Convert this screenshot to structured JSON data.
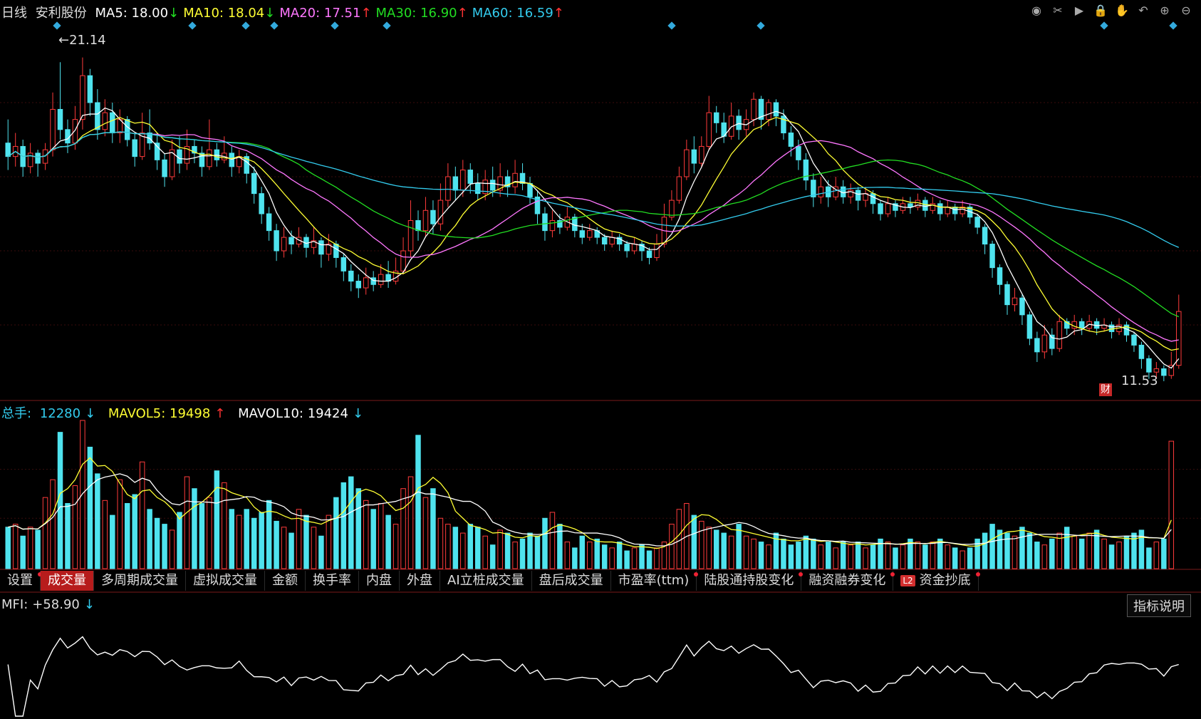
{
  "header": {
    "period": "日线",
    "stock": "安利股份",
    "ma": [
      {
        "label": "MA5: 18.00",
        "arrow": "↓",
        "color": "#ffffff",
        "arrow_color": "#22dd22"
      },
      {
        "label": "MA10: 18.04",
        "arrow": "↓",
        "color": "#ffff33",
        "arrow_color": "#22dd22"
      },
      {
        "label": "MA20: 17.51",
        "arrow": "↑",
        "color": "#ff77ff",
        "arrow_color": "#ff3333"
      },
      {
        "label": "MA30: 16.90",
        "arrow": "↑",
        "color": "#22dd22",
        "arrow_color": "#ff3333"
      },
      {
        "label": "MA60: 16.59",
        "arrow": "↑",
        "color": "#33ccee",
        "arrow_color": "#ff3333"
      }
    ]
  },
  "toolbar_icons": [
    "eye-icon",
    "scissors-icon",
    "play-icon",
    "lock-icon",
    "hand-icon",
    "undo-icon",
    "zoom-in-icon",
    "zoom-out-icon"
  ],
  "price_panel": {
    "high_label": "21.14",
    "low_label": "11.53",
    "fin_badge": "财"
  },
  "volume_header": {
    "total": {
      "label": "总手:",
      "value": "12280",
      "arrow": "↓",
      "color": "#33ccee"
    },
    "mavol5": {
      "label": "MAVOL5: 19498",
      "arrow": "↑",
      "color": "#ffff33"
    },
    "mavol10": {
      "label": "MAVOL10: 19424",
      "arrow": "↓",
      "color": "#ffffff"
    }
  },
  "tabs": [
    {
      "label": "设置",
      "dot": true,
      "active": false
    },
    {
      "label": "成交量",
      "dot": false,
      "active": true
    },
    {
      "label": "多周期成交量",
      "dot": false,
      "active": false
    },
    {
      "label": "虚拟成交量",
      "dot": false,
      "active": false
    },
    {
      "label": "金额",
      "dot": false,
      "active": false
    },
    {
      "label": "换手率",
      "dot": false,
      "active": false
    },
    {
      "label": "内盘",
      "dot": false,
      "active": false
    },
    {
      "label": "外盘",
      "dot": false,
      "active": false
    },
    {
      "label": "AI立桩成交量",
      "dot": false,
      "active": false
    },
    {
      "label": "盘后成交量",
      "dot": false,
      "active": false
    },
    {
      "label": "市盈率(ttm)",
      "dot": true,
      "active": false
    },
    {
      "label": "陆股通持股变化",
      "dot": true,
      "active": false
    },
    {
      "label": "融资融券变化",
      "dot": true,
      "active": false
    },
    {
      "label": "资金抄底",
      "dot": true,
      "active": false,
      "badge": "L2"
    }
  ],
  "mfi": {
    "label": "MFI:",
    "value": "+58.90",
    "arrow": "↓"
  },
  "explain_button": "指标说明",
  "colors": {
    "up": "#ff3b3b",
    "down": "#4fe3ee",
    "ma5": "#ffffff",
    "ma10": "#ffff33",
    "ma20": "#ff77ff",
    "ma30": "#22dd22",
    "ma60": "#33ccee"
  },
  "chart_data": {
    "type": "candlestick",
    "price_range": [
      11.0,
      22.0
    ],
    "candles": [
      [
        18.6,
        18.2,
        19.3,
        17.8
      ],
      [
        18.2,
        18.5,
        18.9,
        17.9
      ],
      [
        18.5,
        17.9,
        18.7,
        17.6
      ],
      [
        17.9,
        18.3,
        18.6,
        17.7
      ],
      [
        18.3,
        18.0,
        18.4,
        17.6
      ],
      [
        18.0,
        18.4,
        18.6,
        17.8
      ],
      [
        18.4,
        19.6,
        20.1,
        18.2
      ],
      [
        19.6,
        19.0,
        21.0,
        18.7
      ],
      [
        19.0,
        18.6,
        19.3,
        18.3
      ],
      [
        18.6,
        19.3,
        19.7,
        18.4
      ],
      [
        19.3,
        20.6,
        21.14,
        19.0
      ],
      [
        20.6,
        19.8,
        20.8,
        19.4
      ],
      [
        19.8,
        19.0,
        20.2,
        18.7
      ],
      [
        19.0,
        19.5,
        19.9,
        18.8
      ],
      [
        19.5,
        18.9,
        19.8,
        18.6
      ],
      [
        18.9,
        19.3,
        19.6,
        18.6
      ],
      [
        19.3,
        18.7,
        19.4,
        18.5
      ],
      [
        18.7,
        18.2,
        18.9,
        17.9
      ],
      [
        18.2,
        18.9,
        19.5,
        18.1
      ],
      [
        18.9,
        18.6,
        19.6,
        18.4
      ],
      [
        18.6,
        18.1,
        18.9,
        17.8
      ],
      [
        18.1,
        17.6,
        18.3,
        17.3
      ],
      [
        17.6,
        18.4,
        18.7,
        17.5
      ],
      [
        18.4,
        18.0,
        18.8,
        17.7
      ],
      [
        18.0,
        18.5,
        19.0,
        17.8
      ],
      [
        18.5,
        18.3,
        18.7,
        18.0
      ],
      [
        18.3,
        17.9,
        18.5,
        17.6
      ],
      [
        17.9,
        18.4,
        19.3,
        17.8
      ],
      [
        18.4,
        18.1,
        18.6,
        17.9
      ],
      [
        18.1,
        18.3,
        18.8,
        18.0
      ],
      [
        18.3,
        17.9,
        18.5,
        17.6
      ],
      [
        17.9,
        18.2,
        18.4,
        17.7
      ],
      [
        18.2,
        17.7,
        18.3,
        17.4
      ],
      [
        17.7,
        17.1,
        17.9,
        16.8
      ],
      [
        17.1,
        16.5,
        17.3,
        16.2
      ],
      [
        16.5,
        16.0,
        16.7,
        15.7
      ],
      [
        16.0,
        15.4,
        16.2,
        15.1
      ],
      [
        15.4,
        15.8,
        16.1,
        15.2
      ],
      [
        15.8,
        15.6,
        16.0,
        15.3
      ],
      [
        15.6,
        15.8,
        16.1,
        15.5
      ],
      [
        15.8,
        15.5,
        15.9,
        15.2
      ],
      [
        15.5,
        15.7,
        16.1,
        15.3
      ],
      [
        15.7,
        15.3,
        15.8,
        14.9
      ],
      [
        15.3,
        15.6,
        15.9,
        15.1
      ],
      [
        15.6,
        15.2,
        15.7,
        14.9
      ],
      [
        15.2,
        14.8,
        15.3,
        14.5
      ],
      [
        14.8,
        14.5,
        15.0,
        14.2
      ],
      [
        14.5,
        14.3,
        14.7,
        14.0
      ],
      [
        14.3,
        14.6,
        14.9,
        14.1
      ],
      [
        14.6,
        14.4,
        14.8,
        14.2
      ],
      [
        14.4,
        14.7,
        15.0,
        14.3
      ],
      [
        14.7,
        14.5,
        15.1,
        14.3
      ],
      [
        14.5,
        14.8,
        15.2,
        14.4
      ],
      [
        14.8,
        15.4,
        15.8,
        14.7
      ],
      [
        15.4,
        16.3,
        16.9,
        15.2
      ],
      [
        16.3,
        16.0,
        16.6,
        15.7
      ],
      [
        16.0,
        16.6,
        17.0,
        15.8
      ],
      [
        16.6,
        16.2,
        16.9,
        15.9
      ],
      [
        16.2,
        16.9,
        17.4,
        16.0
      ],
      [
        16.9,
        17.6,
        18.0,
        16.7
      ],
      [
        17.6,
        17.2,
        17.9,
        16.9
      ],
      [
        17.2,
        17.8,
        18.1,
        17.0
      ],
      [
        17.8,
        17.4,
        18.0,
        17.1
      ],
      [
        17.4,
        17.1,
        17.7,
        16.9
      ],
      [
        17.1,
        17.5,
        17.8,
        16.9
      ],
      [
        17.5,
        17.2,
        17.9,
        17.0
      ],
      [
        17.2,
        17.6,
        18.0,
        17.0
      ],
      [
        17.6,
        17.3,
        17.8,
        17.0
      ],
      [
        17.3,
        17.7,
        18.1,
        17.1
      ],
      [
        17.7,
        17.4,
        18.0,
        17.2
      ],
      [
        17.4,
        17.0,
        17.6,
        16.8
      ],
      [
        17.0,
        16.5,
        17.2,
        16.2
      ],
      [
        16.5,
        16.0,
        16.7,
        15.7
      ],
      [
        16.0,
        16.3,
        16.6,
        15.8
      ],
      [
        16.3,
        16.1,
        16.5,
        15.9
      ],
      [
        16.1,
        16.4,
        16.7,
        16.0
      ],
      [
        16.4,
        16.0,
        16.5,
        15.8
      ],
      [
        16.0,
        15.8,
        16.2,
        15.6
      ],
      [
        15.8,
        16.0,
        16.2,
        15.7
      ],
      [
        16.0,
        15.8,
        16.1,
        15.6
      ],
      [
        15.8,
        15.6,
        15.9,
        15.4
      ],
      [
        15.6,
        15.8,
        16.0,
        15.5
      ],
      [
        15.8,
        15.6,
        15.9,
        15.4
      ],
      [
        15.6,
        15.4,
        15.7,
        15.2
      ],
      [
        15.4,
        15.6,
        15.8,
        15.3
      ],
      [
        15.6,
        15.4,
        15.7,
        15.1
      ],
      [
        15.4,
        15.2,
        15.5,
        15.0
      ],
      [
        15.2,
        15.6,
        15.9,
        15.1
      ],
      [
        15.6,
        16.4,
        16.8,
        15.5
      ],
      [
        16.4,
        16.9,
        17.2,
        16.3
      ],
      [
        16.9,
        17.6,
        17.9,
        16.8
      ],
      [
        17.6,
        18.4,
        18.7,
        17.5
      ],
      [
        18.4,
        18.0,
        18.8,
        17.7
      ],
      [
        18.0,
        18.5,
        18.8,
        17.9
      ],
      [
        18.5,
        19.5,
        20.0,
        18.4
      ],
      [
        19.5,
        19.2,
        19.7,
        18.9
      ],
      [
        19.2,
        18.8,
        19.5,
        18.6
      ],
      [
        18.8,
        19.4,
        19.8,
        18.7
      ],
      [
        19.4,
        19.0,
        19.6,
        18.7
      ],
      [
        19.0,
        19.3,
        19.6,
        18.8
      ],
      [
        19.3,
        19.9,
        20.1,
        19.1
      ],
      [
        19.9,
        19.3,
        20.0,
        19.0
      ],
      [
        19.3,
        19.8,
        19.9,
        19.1
      ],
      [
        19.8,
        19.4,
        19.9,
        19.1
      ],
      [
        19.4,
        18.9,
        19.6,
        18.7
      ],
      [
        18.9,
        18.5,
        19.1,
        18.2
      ],
      [
        18.5,
        18.1,
        18.7,
        17.8
      ],
      [
        18.1,
        17.5,
        18.3,
        17.2
      ],
      [
        17.5,
        17.0,
        17.7,
        16.7
      ],
      [
        17.0,
        17.3,
        17.6,
        16.8
      ],
      [
        17.3,
        17.0,
        17.5,
        16.7
      ],
      [
        17.0,
        17.3,
        17.6,
        16.9
      ],
      [
        17.3,
        17.0,
        17.5,
        16.8
      ],
      [
        17.0,
        17.2,
        17.4,
        16.8
      ],
      [
        17.2,
        16.9,
        17.3,
        16.6
      ],
      [
        16.9,
        17.1,
        17.3,
        16.7
      ],
      [
        17.1,
        16.8,
        17.2,
        16.5
      ],
      [
        16.8,
        16.5,
        16.9,
        16.3
      ],
      [
        16.5,
        16.8,
        17.0,
        16.4
      ],
      [
        16.8,
        16.6,
        16.9,
        16.4
      ],
      [
        16.6,
        16.8,
        17.0,
        16.5
      ],
      [
        16.8,
        16.7,
        17.0,
        16.5
      ],
      [
        16.7,
        16.9,
        17.1,
        16.6
      ],
      [
        16.9,
        16.6,
        17.0,
        16.4
      ],
      [
        16.6,
        16.8,
        17.0,
        16.5
      ],
      [
        16.8,
        16.5,
        16.9,
        16.3
      ],
      [
        16.5,
        16.7,
        16.9,
        16.4
      ],
      [
        16.7,
        16.5,
        16.8,
        16.3
      ],
      [
        16.5,
        16.7,
        16.9,
        16.4
      ],
      [
        16.7,
        16.4,
        16.8,
        16.2
      ],
      [
        16.4,
        16.1,
        16.5,
        15.9
      ],
      [
        16.1,
        15.6,
        16.2,
        15.3
      ],
      [
        15.6,
        14.9,
        15.7,
        14.6
      ],
      [
        14.9,
        14.4,
        15.0,
        14.1
      ],
      [
        14.4,
        13.8,
        14.5,
        13.5
      ],
      [
        13.8,
        14.0,
        14.3,
        13.6
      ],
      [
        14.0,
        13.5,
        14.1,
        13.2
      ],
      [
        13.5,
        12.8,
        13.6,
        12.6
      ],
      [
        12.8,
        12.4,
        13.0,
        12.1
      ],
      [
        12.4,
        12.9,
        13.2,
        12.2
      ],
      [
        12.9,
        12.5,
        13.1,
        12.3
      ],
      [
        12.5,
        13.3,
        13.5,
        12.4
      ],
      [
        13.3,
        13.1,
        13.4,
        12.9
      ],
      [
        13.1,
        13.3,
        13.5,
        12.9
      ],
      [
        13.3,
        13.1,
        13.4,
        12.9
      ],
      [
        13.1,
        13.3,
        13.5,
        13.0
      ],
      [
        13.3,
        13.1,
        13.4,
        12.9
      ],
      [
        13.1,
        13.2,
        13.4,
        13.0
      ],
      [
        13.2,
        13.0,
        13.3,
        12.8
      ],
      [
        13.0,
        13.2,
        13.4,
        12.9
      ],
      [
        13.2,
        12.9,
        13.3,
        12.7
      ],
      [
        12.9,
        12.6,
        13.0,
        12.4
      ],
      [
        12.6,
        12.2,
        12.7,
        11.9
      ],
      [
        12.2,
        11.8,
        12.3,
        11.6
      ],
      [
        11.8,
        11.9,
        12.1,
        11.6
      ],
      [
        11.9,
        11.7,
        12.0,
        11.53
      ],
      [
        11.7,
        12.0,
        12.4,
        11.6
      ],
      [
        12.0,
        13.6,
        14.1,
        11.9
      ]
    ],
    "volume_range": [
      0,
      100
    ],
    "volumes": [
      28,
      30,
      22,
      28,
      26,
      48,
      60,
      92,
      44,
      56,
      100,
      82,
      64,
      46,
      36,
      60,
      44,
      50,
      72,
      40,
      34,
      30,
      26,
      38,
      62,
      54,
      44,
      48,
      66,
      58,
      40,
      36,
      40,
      34,
      38,
      46,
      32,
      28,
      24,
      40,
      36,
      28,
      22,
      36,
      48,
      58,
      62,
      54,
      46,
      40,
      44,
      36,
      30,
      54,
      62,
      90,
      48,
      54,
      34,
      30,
      28,
      24,
      30,
      28,
      22,
      16,
      26,
      24,
      18,
      20,
      24,
      22,
      34,
      38,
      30,
      18,
      14,
      22,
      18,
      20,
      16,
      14,
      18,
      12,
      14,
      16,
      12,
      14,
      18,
      30,
      40,
      44,
      36,
      32,
      28,
      26,
      24,
      22,
      30,
      22,
      20,
      18,
      16,
      24,
      20,
      16,
      18,
      22,
      20,
      16,
      18,
      14,
      18,
      16,
      18,
      14,
      16,
      20,
      18,
      14,
      16,
      20,
      18,
      16,
      18,
      20,
      16,
      14,
      12,
      14,
      20,
      24,
      30,
      26,
      24,
      22,
      28,
      24,
      18,
      16,
      20,
      24,
      28,
      22,
      20,
      24,
      26,
      20,
      16,
      18,
      22,
      24,
      26,
      14,
      18,
      20,
      86
    ]
  }
}
